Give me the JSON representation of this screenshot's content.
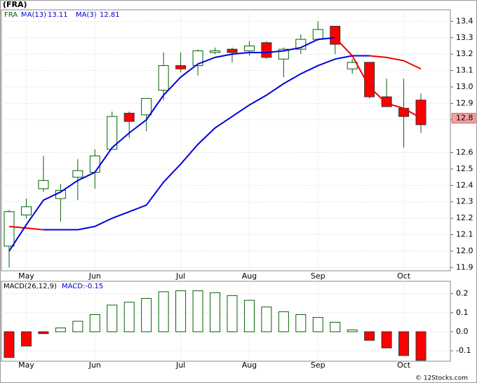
{
  "title": "(FRA)",
  "footer": "© 12Stocks.com",
  "chart_data": [
    {
      "type": "candlestick",
      "ticker": "FRA",
      "categories": [
        null,
        "May",
        null,
        null,
        null,
        "Jun",
        null,
        null,
        null,
        null,
        "Jul",
        null,
        null,
        null,
        "Aug",
        null,
        null,
        null,
        "Sep",
        null,
        null,
        null,
        null,
        "Oct",
        null
      ],
      "open": [
        12.03,
        12.22,
        12.38,
        12.32,
        12.45,
        12.48,
        12.62,
        12.84,
        12.83,
        12.98,
        13.13,
        13.13,
        13.21,
        13.23,
        13.22,
        13.27,
        13.17,
        13.23,
        13.29,
        13.37,
        13.11,
        13.15,
        12.94,
        12.87,
        12.92
      ],
      "high": [
        12.25,
        12.32,
        12.58,
        12.41,
        12.56,
        12.62,
        12.85,
        12.85,
        12.93,
        13.21,
        13.21,
        13.23,
        13.24,
        13.24,
        13.28,
        13.28,
        13.24,
        13.32,
        13.4,
        13.37,
        13.17,
        13.15,
        13.05,
        13.05,
        12.96
      ],
      "low": [
        11.9,
        12.2,
        12.36,
        12.18,
        12.31,
        12.38,
        12.62,
        12.69,
        12.73,
        12.92,
        13.09,
        13.07,
        13.2,
        13.15,
        13.19,
        13.17,
        13.06,
        13.2,
        13.28,
        13.2,
        13.08,
        12.93,
        12.88,
        12.63,
        12.72
      ],
      "close": [
        12.24,
        12.27,
        12.43,
        12.37,
        12.49,
        12.58,
        12.82,
        12.79,
        12.93,
        13.13,
        13.11,
        13.22,
        13.22,
        13.21,
        13.25,
        13.18,
        13.23,
        13.29,
        13.35,
        13.26,
        13.15,
        12.94,
        12.88,
        12.82,
        12.77
      ],
      "up_color": "#ffffff",
      "down_color": "#ff0000",
      "candle_stroke": "#006400",
      "series": [
        {
          "name": "MA(13)",
          "color": "#0000dd",
          "falling_color": "#ee0000",
          "values": [
            12.15,
            12.14,
            12.13,
            12.13,
            12.13,
            12.15,
            12.2,
            12.24,
            12.28,
            12.42,
            12.53,
            12.65,
            12.75,
            12.82,
            12.89,
            12.95,
            13.02,
            13.08,
            13.13,
            13.17,
            13.19,
            13.19,
            13.18,
            13.16,
            13.11
          ]
        },
        {
          "name": "MA(3)",
          "color": "#0000dd",
          "falling_color": "#ee0000",
          "values": [
            12.0,
            12.16,
            12.31,
            12.36,
            12.43,
            12.48,
            12.63,
            12.72,
            12.8,
            12.95,
            13.06,
            13.14,
            13.18,
            13.2,
            13.21,
            13.21,
            13.22,
            13.24,
            13.29,
            13.3,
            13.19,
            13.0,
            12.9,
            12.87,
            12.81
          ]
        }
      ],
      "last_price": {
        "value": 12.81,
        "label": "12.8"
      },
      "ylim": [
        11.88,
        13.47
      ],
      "yticks": [
        13.4,
        13.3,
        13.2,
        13.1,
        {
          "value": 13.0,
          "label": "13.0"
        },
        12.9,
        12.8,
        12.6,
        12.5,
        12.4,
        12.3,
        12.2,
        12.1,
        {
          "value": 12.0,
          "label": "12.0"
        },
        11.9
      ],
      "grid": true
    },
    {
      "type": "bar",
      "name": "MACD(26,12,9)",
      "value_label": "MACD:-0.15",
      "categories": [
        null,
        "May",
        null,
        null,
        null,
        "Jun",
        null,
        null,
        null,
        null,
        "Jul",
        null,
        null,
        null,
        "Aug",
        null,
        null,
        null,
        "Sep",
        null,
        null,
        null,
        null,
        "Oct",
        null
      ],
      "values": [
        -0.135,
        -0.075,
        -0.01,
        0.02,
        0.055,
        0.09,
        0.14,
        0.155,
        0.175,
        0.21,
        0.215,
        0.215,
        0.205,
        0.19,
        0.165,
        0.13,
        0.105,
        0.09,
        0.075,
        0.05,
        0.01,
        -0.045,
        -0.085,
        -0.125,
        -0.15
      ],
      "positive_color": "#ffffff",
      "negative_color": "#ff0000",
      "bar_stroke": "#006400",
      "ylim": [
        -0.155,
        0.265
      ],
      "yticks": [
        0.2,
        0.1,
        {
          "value": 0,
          "label": "0.0"
        },
        -0.1
      ],
      "grid": true
    }
  ]
}
